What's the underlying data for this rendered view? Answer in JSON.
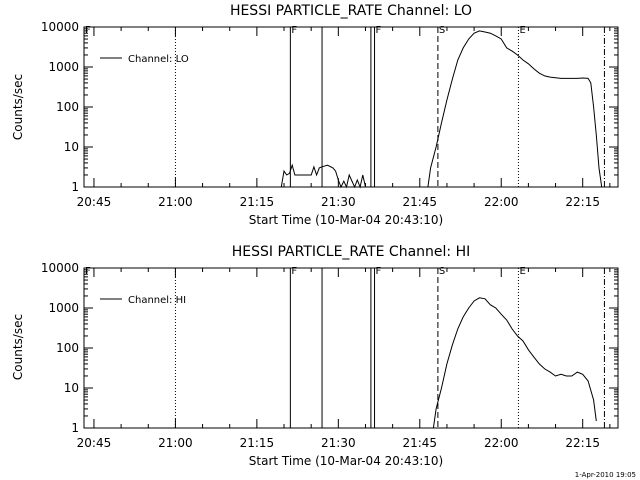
{
  "footer": {
    "timestamp": "1-Apr-2010 19:05"
  },
  "chart_data": [
    {
      "type": "line",
      "title": "HESSI PARTICLE_RATE Channel: LO",
      "xlabel": "Start Time (10-Mar-04 20:43:10)",
      "ylabel": "Counts/sec",
      "yscale": "log",
      "ylim": [
        1,
        10000
      ],
      "xlim": [
        "20:43:10",
        "22:21:30"
      ],
      "x_ticks": [
        "20:45",
        "21:00",
        "21:15",
        "21:30",
        "21:45",
        "22:00",
        "22:15"
      ],
      "y_ticks": [
        "1",
        "10",
        "100",
        "1000",
        "10000"
      ],
      "legend": {
        "position": "top-left",
        "entries": [
          "Channel: LO"
        ]
      },
      "grid": false,
      "markers": [
        {
          "label": "F",
          "time": "20:43:10",
          "style": "dotted"
        },
        {
          "label": "F",
          "time": "21:21:10",
          "style": "solid"
        },
        {
          "label": "",
          "time": "21:27:00",
          "style": "solid"
        },
        {
          "label": "F",
          "time": "21:36:40",
          "style": "solid"
        },
        {
          "label": "",
          "time": "21:36:00",
          "style": "solid"
        },
        {
          "label": "",
          "time": "21:00:00",
          "style": "dotted"
        },
        {
          "label": "S",
          "time": "21:48:20",
          "style": "dashed"
        },
        {
          "label": "E",
          "time": "22:03:10",
          "style": "dotted"
        },
        {
          "label": "",
          "time": "22:19:00",
          "style": "dashdot"
        }
      ],
      "series": [
        {
          "segments": [
            {
              "x": [
                "21:19:30",
                "21:20:00",
                "21:20:30",
                "21:21:00",
                "21:21:30",
                "21:22:00",
                "21:23:00",
                "21:24:00",
                "21:25:00",
                "21:25:30",
                "21:26:00",
                "21:26:30",
                "21:27:00",
                "21:28:00",
                "21:29:00",
                "21:29:30",
                "21:30:00",
                "21:30:30",
                "21:31:00",
                "21:31:30",
                "21:32:00",
                "21:33:00",
                "21:33:30",
                "21:34:00",
                "21:34:30",
                "21:35:00"
              ],
              "y": [
                1,
                2.5,
                2,
                2.2,
                3.5,
                2,
                2,
                2,
                2,
                3.2,
                2,
                3,
                3.2,
                3.5,
                3,
                2.5,
                1.5,
                1,
                1.4,
                1,
                2,
                1,
                1.5,
                1,
                2,
                1
              ]
            },
            {
              "x": [
                "21:46:30",
                "21:47:00",
                "21:48:00",
                "21:49:00",
                "21:50:00",
                "21:51:00",
                "21:52:00",
                "21:53:00",
                "21:54:00",
                "21:55:00",
                "21:56:00",
                "21:57:00",
                "21:58:00",
                "21:59:00",
                "22:00:00",
                "22:01:00",
                "22:02:00",
                "22:03:00",
                "22:04:00",
                "22:05:00",
                "22:06:00",
                "22:07:00",
                "22:08:00",
                "22:09:00",
                "22:10:00",
                "22:11:00",
                "22:12:00",
                "22:13:00",
                "22:14:00",
                "22:15:00",
                "22:16:00",
                "22:16:30",
                "22:17:00",
                "22:17:30",
                "22:18:00",
                "22:18:30"
              ],
              "y": [
                1,
                3,
                10,
                40,
                150,
                500,
                1500,
                3000,
                5000,
                7000,
                8000,
                7500,
                7000,
                6000,
                5000,
                3000,
                2500,
                2000,
                1500,
                1200,
                900,
                700,
                600,
                560,
                540,
                520,
                520,
                520,
                520,
                530,
                520,
                400,
                100,
                20,
                3,
                1
              ]
            }
          ]
        }
      ]
    },
    {
      "type": "line",
      "title": "HESSI PARTICLE_RATE Channel: HI",
      "xlabel": "Start Time (10-Mar-04 20:43:10)",
      "ylabel": "Counts/sec",
      "yscale": "log",
      "ylim": [
        1,
        10000
      ],
      "xlim": [
        "20:43:10",
        "22:21:30"
      ],
      "x_ticks": [
        "20:45",
        "21:00",
        "21:15",
        "21:30",
        "21:45",
        "22:00",
        "22:15"
      ],
      "y_ticks": [
        "1",
        "10",
        "100",
        "1000",
        "10000"
      ],
      "legend": {
        "position": "top-left",
        "entries": [
          "Channel: HI"
        ]
      },
      "grid": false,
      "markers": [
        {
          "label": "F",
          "time": "20:43:10",
          "style": "dotted"
        },
        {
          "label": "F",
          "time": "21:21:10",
          "style": "solid"
        },
        {
          "label": "",
          "time": "21:27:00",
          "style": "solid"
        },
        {
          "label": "F",
          "time": "21:36:40",
          "style": "solid"
        },
        {
          "label": "",
          "time": "21:36:00",
          "style": "solid"
        },
        {
          "label": "",
          "time": "21:00:00",
          "style": "dotted"
        },
        {
          "label": "S",
          "time": "21:48:20",
          "style": "dashed"
        },
        {
          "label": "E",
          "time": "22:03:10",
          "style": "dotted"
        },
        {
          "label": "",
          "time": "22:19:00",
          "style": "dashdot"
        }
      ],
      "series": [
        {
          "segments": [
            {
              "x": [
                "21:47:30",
                "21:48:00",
                "21:49:00",
                "21:50:00",
                "21:51:00",
                "21:52:00",
                "21:53:00",
                "21:54:00",
                "21:55:00",
                "21:56:00",
                "21:57:00",
                "21:58:00",
                "21:59:00",
                "22:00:00",
                "22:01:00",
                "22:02:00",
                "22:03:00",
                "22:04:00",
                "22:05:00",
                "22:06:00",
                "22:07:00",
                "22:08:00",
                "22:09:00",
                "22:10:00",
                "22:11:00",
                "22:12:00",
                "22:13:00",
                "22:14:00",
                "22:15:00",
                "22:16:00",
                "22:17:00",
                "22:17:30"
              ],
              "y": [
                1,
                3,
                10,
                40,
                120,
                300,
                600,
                1000,
                1500,
                1800,
                1700,
                1200,
                1000,
                700,
                500,
                300,
                200,
                150,
                90,
                60,
                40,
                30,
                25,
                20,
                22,
                20,
                20,
                25,
                22,
                15,
                5,
                1.5
              ]
            }
          ]
        }
      ]
    }
  ]
}
